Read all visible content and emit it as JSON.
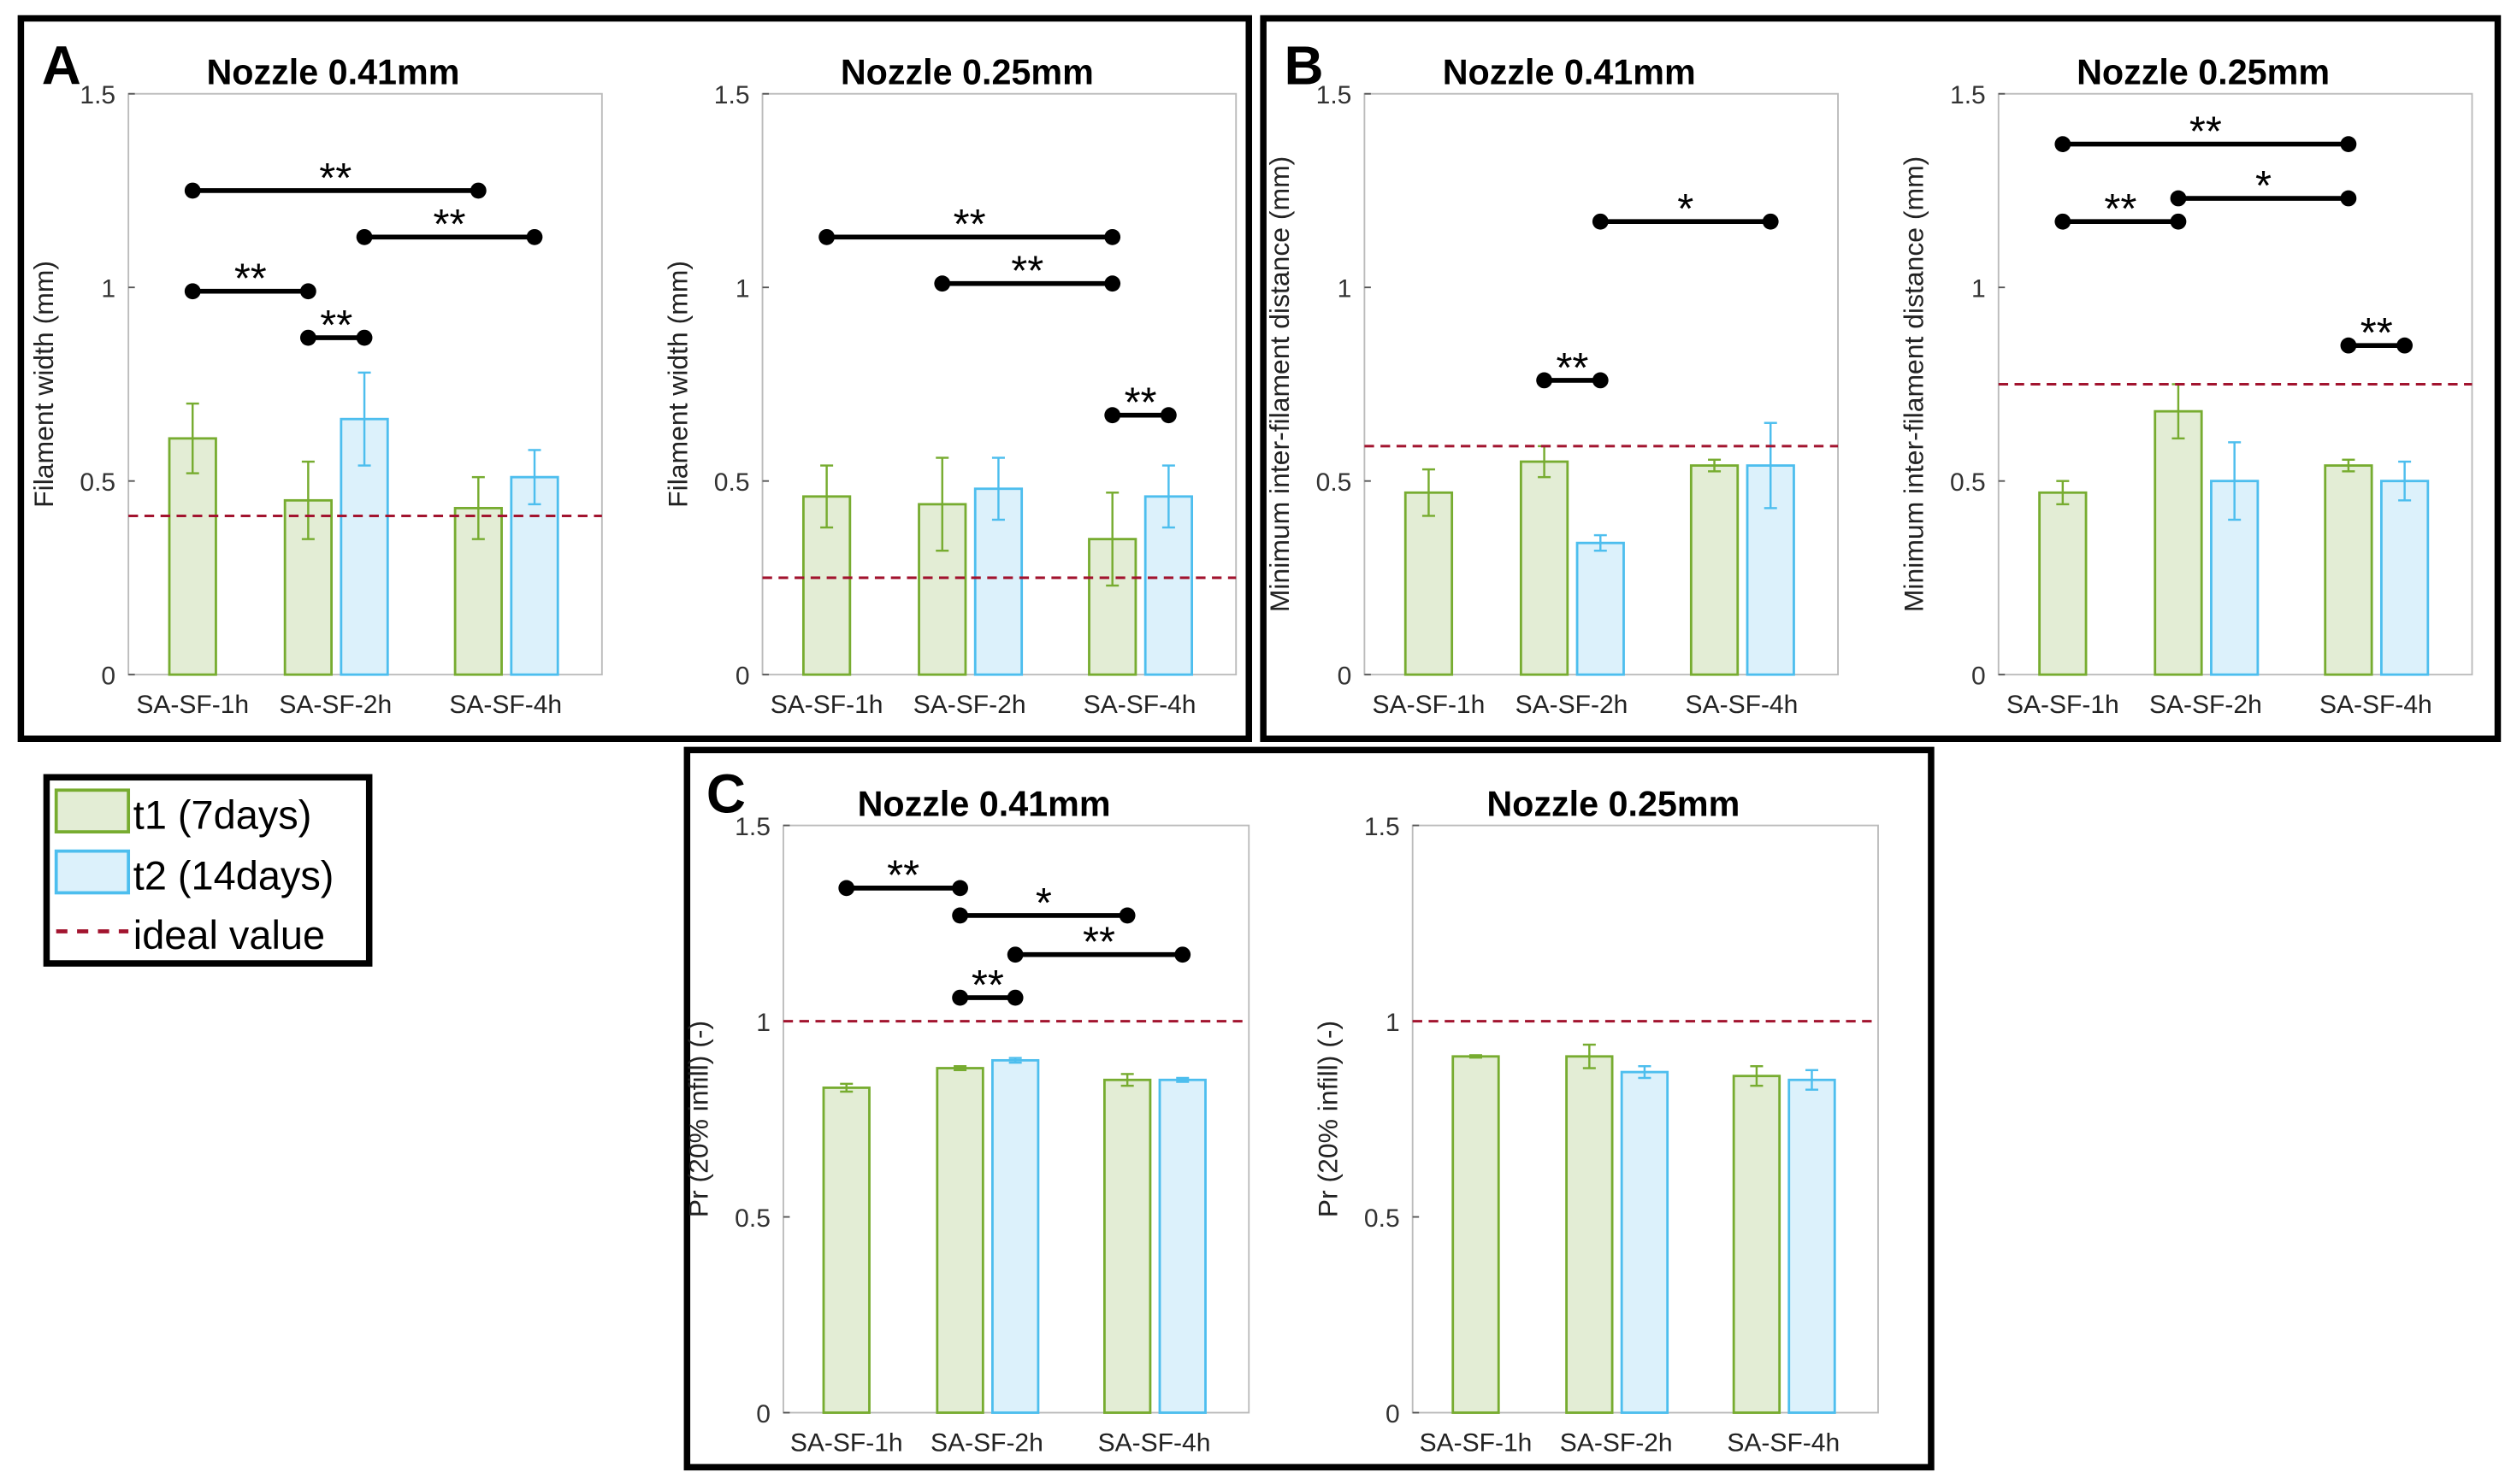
{
  "colors": {
    "t1_edge": "#77ac30",
    "t1_fill": "#e3edd5",
    "t2_edge": "#4dbeee",
    "t2_fill": "#dcf1fb",
    "ideal": "#a2142f",
    "sig": "#000000",
    "axis": "#555555"
  },
  "panels": [
    {
      "letter": "A"
    },
    {
      "letter": "B"
    },
    {
      "letter": "C"
    }
  ],
  "legend": {
    "items": [
      {
        "label": "t1 (7days)",
        "kind": "t1"
      },
      {
        "label": "t2 (14days)",
        "kind": "t2"
      },
      {
        "label": "ideal value",
        "kind": "ideal"
      }
    ]
  },
  "chart_data": [
    {
      "type": "bar",
      "panel": "A",
      "title": "Nozzle 0.41mm",
      "ylabel": "Filament width (mm)",
      "ylim": [
        0,
        1.5
      ],
      "yticks": [
        "0",
        "0.5",
        "1",
        "1.5"
      ],
      "categories": [
        "SA-SF-1h",
        "SA-SF-2h",
        "SA-SF-4h"
      ],
      "series": [
        {
          "name": "t1 (7days)",
          "values": [
            0.61,
            0.45,
            0.43
          ],
          "errors": [
            0.09,
            0.1,
            0.08
          ]
        },
        {
          "name": "t2 (14days)",
          "values": [
            null,
            0.66,
            0.51
          ],
          "errors": [
            null,
            0.12,
            0.07
          ]
        }
      ],
      "ideal": 0.41,
      "significance": [
        {
          "from": "SA-SF-1h t1",
          "to": "SA-SF-4h t1",
          "y": 1.25,
          "label": "**"
        },
        {
          "from": "SA-SF-1h t1",
          "to": "SA-SF-2h t1",
          "y": 0.99,
          "label": "**"
        },
        {
          "from": "SA-SF-2h t1",
          "to": "SA-SF-2h t2",
          "y": 0.87,
          "label": "**"
        },
        {
          "from": "SA-SF-2h t2",
          "to": "SA-SF-4h t2",
          "y": 1.13,
          "label": "**"
        }
      ]
    },
    {
      "type": "bar",
      "panel": "A",
      "title": "Nozzle 0.25mm",
      "ylabel": "Filament width (mm)",
      "ylim": [
        0,
        1.5
      ],
      "yticks": [
        "0",
        "0.5",
        "1",
        "1.5"
      ],
      "categories": [
        "SA-SF-1h",
        "SA-SF-2h",
        "SA-SF-4h"
      ],
      "series": [
        {
          "name": "t1 (7days)",
          "values": [
            0.46,
            0.44,
            0.35
          ],
          "errors": [
            0.08,
            0.12,
            0.12
          ]
        },
        {
          "name": "t2 (14days)",
          "values": [
            null,
            0.48,
            0.46
          ],
          "errors": [
            null,
            0.08,
            0.08
          ]
        }
      ],
      "ideal": 0.25,
      "significance": [
        {
          "from": "SA-SF-1h t1",
          "to": "SA-SF-4h t1",
          "y": 1.13,
          "label": "**"
        },
        {
          "from": "SA-SF-2h t1",
          "to": "SA-SF-4h t1",
          "y": 1.01,
          "label": "**"
        },
        {
          "from": "SA-SF-4h t1",
          "to": "SA-SF-4h t2",
          "y": 0.67,
          "label": "**"
        }
      ]
    },
    {
      "type": "bar",
      "panel": "B",
      "title": "Nozzle 0.41mm",
      "ylabel": "Minimum inter-filament distance (mm)",
      "ylim": [
        0,
        1.5
      ],
      "yticks": [
        "0",
        "0.5",
        "1",
        "1.5"
      ],
      "categories": [
        "SA-SF-1h",
        "SA-SF-2h",
        "SA-SF-4h"
      ],
      "series": [
        {
          "name": "t1 (7days)",
          "values": [
            0.47,
            0.55,
            0.54
          ],
          "errors": [
            0.06,
            0.04,
            0.015
          ]
        },
        {
          "name": "t2 (14days)",
          "values": [
            null,
            0.34,
            0.54
          ],
          "errors": [
            null,
            0.02,
            0.11
          ]
        }
      ],
      "ideal": 0.59,
      "significance": [
        {
          "from": "SA-SF-2h t1",
          "to": "SA-SF-2h t2",
          "y": 0.76,
          "label": "**"
        },
        {
          "from": "SA-SF-2h t2",
          "to": "SA-SF-4h t2",
          "y": 1.17,
          "label": "*"
        }
      ]
    },
    {
      "type": "bar",
      "panel": "B",
      "title": "Nozzle 0.25mm",
      "ylabel": "Minimum inter-filament distance (mm)",
      "ylim": [
        0,
        1.5
      ],
      "yticks": [
        "0",
        "0.5",
        "1",
        "1.5"
      ],
      "categories": [
        "SA-SF-1h",
        "SA-SF-2h",
        "SA-SF-4h"
      ],
      "series": [
        {
          "name": "t1 (7days)",
          "values": [
            0.47,
            0.68,
            0.54
          ],
          "errors": [
            0.03,
            0.07,
            0.015
          ]
        },
        {
          "name": "t2 (14days)",
          "values": [
            null,
            0.5,
            0.5
          ],
          "errors": [
            null,
            0.1,
            0.05
          ]
        }
      ],
      "ideal": 0.75,
      "significance": [
        {
          "from": "SA-SF-1h t1",
          "to": "SA-SF-4h t1",
          "y": 1.37,
          "label": "**"
        },
        {
          "from": "SA-SF-1h t1",
          "to": "SA-SF-2h t1",
          "y": 1.17,
          "label": "**"
        },
        {
          "from": "SA-SF-2h t1",
          "to": "SA-SF-4h t1",
          "y": 1.23,
          "label": "*"
        },
        {
          "from": "SA-SF-4h t1",
          "to": "SA-SF-4h t2",
          "y": 0.85,
          "label": "**"
        }
      ]
    },
    {
      "type": "bar",
      "panel": "C",
      "title": "Nozzle 0.41mm",
      "ylabel": "Pr (20% infill) (-)",
      "ylim": [
        0,
        1.5
      ],
      "yticks": [
        "0",
        "0.5",
        "1",
        "1.5"
      ],
      "categories": [
        "SA-SF-1h",
        "SA-SF-2h",
        "SA-SF-4h"
      ],
      "series": [
        {
          "name": "t1 (7days)",
          "values": [
            0.83,
            0.88,
            0.85
          ],
          "errors": [
            0.01,
            0.005,
            0.015
          ]
        },
        {
          "name": "t2 (14days)",
          "values": [
            null,
            0.9,
            0.85
          ],
          "errors": [
            null,
            0.006,
            0.005
          ]
        }
      ],
      "ideal": 1.0,
      "significance": [
        {
          "from": "SA-SF-1h t1",
          "to": "SA-SF-2h t1",
          "y": 1.34,
          "label": "**"
        },
        {
          "from": "SA-SF-2h t1",
          "to": "SA-SF-4h t1",
          "y": 1.27,
          "label": "*"
        },
        {
          "from": "SA-SF-2h t2",
          "to": "SA-SF-4h t2",
          "y": 1.17,
          "label": "**"
        },
        {
          "from": "SA-SF-2h t1",
          "to": "SA-SF-2h t2",
          "y": 1.06,
          "label": "**"
        }
      ]
    },
    {
      "type": "bar",
      "panel": "C",
      "title": "Nozzle 0.25mm",
      "ylabel": "Pr (20% infill) (-)",
      "ylim": [
        0,
        1.5
      ],
      "yticks": [
        "0",
        "0.5",
        "1",
        "1.5"
      ],
      "categories": [
        "SA-SF-1h",
        "SA-SF-2h",
        "SA-SF-4h"
      ],
      "series": [
        {
          "name": "t1 (7days)",
          "values": [
            0.91,
            0.91,
            0.86
          ],
          "errors": [
            0.003,
            0.03,
            0.025
          ]
        },
        {
          "name": "t2 (14days)",
          "values": [
            null,
            0.87,
            0.85
          ],
          "errors": [
            null,
            0.015,
            0.025
          ]
        }
      ],
      "ideal": 1.0,
      "significance": []
    }
  ]
}
